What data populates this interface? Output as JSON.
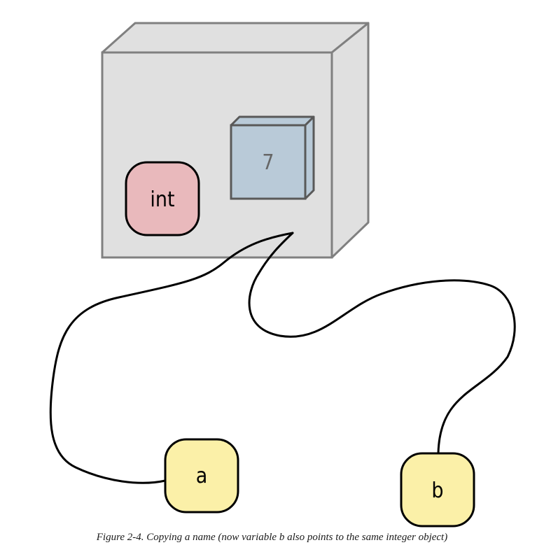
{
  "object": {
    "type_label": "int",
    "value_label": "7"
  },
  "names": {
    "first": "a",
    "second": "b"
  },
  "caption": {
    "prefix": "Figure 2-4. Copying a name (now variable ",
    "variable": "b",
    "suffix": " also points to the same integer object)"
  },
  "colors": {
    "box_fill": "#e0e0e0",
    "box_stroke": "#808080",
    "type_fill": "#e9b9bc",
    "value_fill": "#b9cad8",
    "name_fill": "#fbf0a8",
    "outline": "#000000"
  }
}
